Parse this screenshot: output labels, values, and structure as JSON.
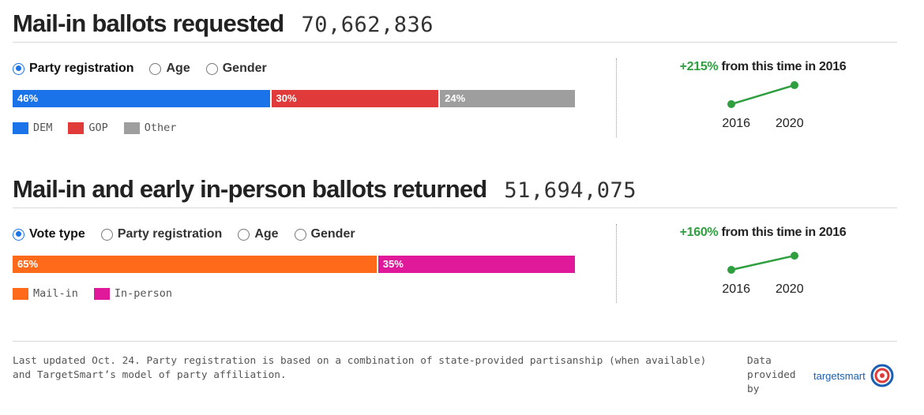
{
  "sections": [
    {
      "title": "Mail-in ballots requested",
      "total": "70,662,836",
      "radios": [
        {
          "label": "Party registration",
          "selected": true
        },
        {
          "label": "Age",
          "selected": false
        },
        {
          "label": "Gender",
          "selected": false
        }
      ],
      "change_pct": "+215%",
      "change_text": " from this time in 2016",
      "years": [
        "2016",
        "2020"
      ]
    },
    {
      "title": "Mail-in and early in-person ballots returned",
      "total": "51,694,075",
      "radios": [
        {
          "label": "Vote type",
          "selected": true
        },
        {
          "label": "Party registration",
          "selected": false
        },
        {
          "label": "Age",
          "selected": false
        },
        {
          "label": "Gender",
          "selected": false
        }
      ],
      "change_pct": "+160%",
      "change_text": " from this time in 2016",
      "years": [
        "2016",
        "2020"
      ]
    }
  ],
  "chart_data": [
    {
      "type": "bar",
      "stacked": true,
      "orientation": "horizontal",
      "categories": [
        "DEM",
        "GOP",
        "Other"
      ],
      "values": [
        46,
        30,
        24
      ],
      "labels": [
        "46%",
        "30%",
        "24%"
      ],
      "colors": [
        "#1a73e8",
        "#e03a3a",
        "#9e9e9e"
      ]
    },
    {
      "type": "line",
      "x": [
        "2016",
        "2020"
      ],
      "relative_values": [
        1,
        3.15
      ],
      "color": "#2e9e3f"
    },
    {
      "type": "bar",
      "stacked": true,
      "orientation": "horizontal",
      "categories": [
        "Mail-in",
        "In-person"
      ],
      "values": [
        65,
        35
      ],
      "labels": [
        "65%",
        "35%"
      ],
      "colors": [
        "#ff6a1a",
        "#e0189a"
      ]
    },
    {
      "type": "line",
      "x": [
        "2016",
        "2020"
      ],
      "relative_values": [
        1,
        2.6
      ],
      "color": "#2e9e3f"
    }
  ],
  "footer": {
    "note": "Last updated Oct. 24. Party registration is based on a combination of state-provided partisanship (when available) and TargetSmart’s model of party affiliation.",
    "credit_label": "Data provided by",
    "brand": "targetsmart",
    "brand_colors": [
      "#1a5fb4",
      "#e03a3a"
    ]
  }
}
